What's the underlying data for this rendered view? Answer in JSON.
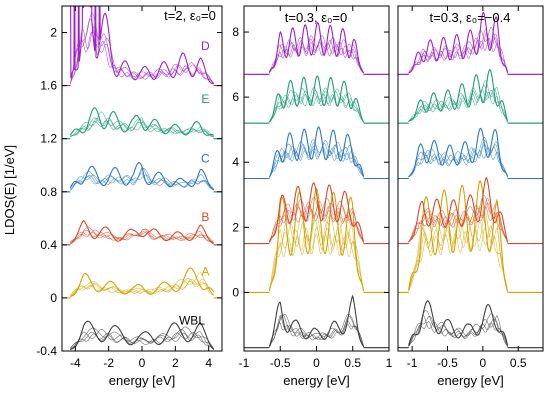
{
  "figure": {
    "ylabel_left": "LDOS(E) [1/eV]",
    "colors": {
      "A": "#d4a400",
      "B": "#d64a2b",
      "C": "#2a7bbf",
      "E": "#1e9e79",
      "D": "#a020c8",
      "WBL": "#404040"
    }
  },
  "chart_data": [
    {
      "type": "line",
      "panel": "left",
      "annotation": "t=2, ε₀=0",
      "xlabel": "energy [eV]",
      "ylabel": "LDOS(E) [1/eV]",
      "xlim": [
        -4.8,
        4.8
      ],
      "ylim": [
        -0.4,
        2.2
      ],
      "xticks": [
        "-4",
        "-2",
        "0",
        "2",
        "4"
      ],
      "yticks": [
        "-0.4",
        "0",
        "0.4",
        "0.8",
        "1.2",
        "1.6",
        "2"
      ],
      "series": [
        {
          "name": "WBL",
          "color": "#404040",
          "offset": -0.4,
          "x": [
            -4.3,
            -3.5,
            -2.5,
            -1.5,
            -0.5,
            0,
            0.5,
            1.5,
            2.5,
            3.5,
            4.3
          ],
          "y": [
            0.02,
            0.14,
            0.16,
            0.12,
            0.1,
            0.09,
            0.1,
            0.12,
            0.16,
            0.14,
            0.02
          ]
        },
        {
          "name": "A",
          "color": "#d4a400",
          "offset": 0.0,
          "x": [
            -4.3,
            -3.5,
            -2.5,
            -1.5,
            -0.5,
            0,
            0.5,
            1.5,
            2.5,
            3.5,
            4.3
          ],
          "y": [
            0.02,
            0.12,
            0.1,
            0.07,
            0.06,
            0.07,
            0.06,
            0.08,
            0.13,
            0.17,
            0.03
          ]
        },
        {
          "name": "B",
          "color": "#d64a2b",
          "offset": 0.4,
          "x": [
            -4.3,
            -3.5,
            -2.5,
            -1.5,
            -0.5,
            0,
            0.5,
            1.5,
            2.5,
            3.5,
            4.3
          ],
          "y": [
            0.02,
            0.12,
            0.1,
            0.06,
            0.08,
            0.14,
            0.08,
            0.07,
            0.06,
            0.1,
            0.02
          ]
        },
        {
          "name": "C",
          "color": "#2a7bbf",
          "offset": 0.8,
          "x": [
            -4.3,
            -3.5,
            -2.5,
            -1.5,
            -0.5,
            0,
            0.5,
            1.5,
            2.5,
            3.5,
            4.3
          ],
          "y": [
            0.02,
            0.15,
            0.1,
            0.12,
            0.1,
            0.18,
            0.1,
            0.09,
            0.06,
            0.12,
            0.03
          ]
        },
        {
          "name": "E",
          "color": "#1e9e79",
          "offset": 1.2,
          "x": [
            -4.3,
            -3.5,
            -2.5,
            -1.5,
            -0.5,
            0,
            0.5,
            1.5,
            2.5,
            3.5,
            4.3
          ],
          "y": [
            0.02,
            0.1,
            0.18,
            0.12,
            0.1,
            0.16,
            0.1,
            0.08,
            0.06,
            0.09,
            0.02
          ]
        },
        {
          "name": "D",
          "color": "#a020c8",
          "offset": 1.6,
          "x": [
            -4.3,
            -3.5,
            -2.5,
            -1.5,
            -0.5,
            0,
            0.5,
            1.5,
            2.5,
            3.5,
            4.3
          ],
          "y": [
            0.02,
            0.5,
            0.45,
            0.14,
            0.1,
            0.09,
            0.1,
            0.12,
            0.16,
            0.14,
            0.02
          ]
        }
      ],
      "annotations": [
        {
          "text": "D",
          "x": 3.8,
          "y": 1.87,
          "color": "#a020c8"
        },
        {
          "text": "E",
          "x": 3.8,
          "y": 1.47,
          "color": "#1e9e79"
        },
        {
          "text": "C",
          "x": 3.8,
          "y": 1.02,
          "color": "#2a7bbf"
        },
        {
          "text": "B",
          "x": 3.8,
          "y": 0.58,
          "color": "#d64a2b"
        },
        {
          "text": "A",
          "x": 3.8,
          "y": 0.17,
          "color": "#d4a400"
        },
        {
          "text": "WBL",
          "x": 3.0,
          "y": -0.2,
          "color": "#000000"
        }
      ]
    },
    {
      "type": "line",
      "panel": "middle",
      "annotation": "t=0.3, ε₀=0",
      "xlabel": "energy [eV]",
      "xlim": [
        -1,
        1
      ],
      "ylim": [
        -1.8,
        8.8
      ],
      "xticks": [
        "-1",
        "-0.5",
        "0",
        "0.5",
        "1"
      ],
      "yticks": [
        "0",
        "2",
        "4",
        "6",
        "8"
      ],
      "series": [
        {
          "name": "WBL",
          "color": "#404040",
          "offset": -1.7,
          "x": [
            -0.65,
            -0.5,
            -0.3,
            0,
            0.3,
            0.5,
            0.65
          ],
          "y": [
            0.05,
            1.1,
            0.6,
            0.4,
            0.6,
            1.1,
            0.05
          ]
        },
        {
          "name": "A",
          "color": "#d4a400",
          "offset": 0.0,
          "x": [
            -0.65,
            -0.5,
            -0.3,
            0,
            0.3,
            0.5,
            0.65
          ],
          "y": [
            0.05,
            2.0,
            2.1,
            2.2,
            2.1,
            2.0,
            0.05
          ]
        },
        {
          "name": "B",
          "color": "#d64a2b",
          "offset": 1.5,
          "x": [
            -0.65,
            -0.5,
            -0.3,
            0,
            0.3,
            0.5,
            0.65
          ],
          "y": [
            0.05,
            1.0,
            1.2,
            1.3,
            1.2,
            1.0,
            0.05
          ]
        },
        {
          "name": "C",
          "color": "#2a7bbf",
          "offset": 3.5,
          "x": [
            -0.65,
            -0.5,
            -0.3,
            0,
            0.3,
            0.5,
            0.65
          ],
          "y": [
            0.05,
            0.9,
            1.0,
            1.1,
            1.0,
            0.9,
            0.05
          ]
        },
        {
          "name": "E",
          "color": "#1e9e79",
          "offset": 5.2,
          "x": [
            -0.65,
            -0.5,
            -0.3,
            0,
            0.3,
            0.5,
            0.65
          ],
          "y": [
            0.05,
            0.8,
            0.95,
            1.0,
            0.95,
            0.8,
            0.05
          ]
        },
        {
          "name": "D",
          "color": "#a020c8",
          "offset": 6.7,
          "x": [
            -0.65,
            -0.5,
            -0.3,
            0,
            0.3,
            0.5,
            0.65
          ],
          "y": [
            0.05,
            0.9,
            1.0,
            1.1,
            1.0,
            0.9,
            0.05
          ]
        }
      ]
    },
    {
      "type": "line",
      "panel": "right",
      "annotation": "t=0.3, ε₀=−0.4",
      "xlabel": "energy [eV]",
      "xlim": [
        -1.2,
        0.85
      ],
      "ylim": [
        -1.8,
        8.8
      ],
      "xticks": [
        "-1",
        "-0.5",
        "0",
        "0.5"
      ],
      "series": [
        {
          "name": "WBL",
          "color": "#404040",
          "offset": -1.7,
          "x": [
            -1.05,
            -0.85,
            -0.5,
            -0.2,
            0.05,
            0.2,
            0.35
          ],
          "y": [
            0.05,
            1.1,
            0.6,
            0.5,
            0.9,
            1.0,
            0.05
          ]
        },
        {
          "name": "A",
          "color": "#d4a400",
          "offset": 0.0,
          "x": [
            -1.05,
            -0.85,
            -0.5,
            -0.2,
            0.05,
            0.2,
            0.35
          ],
          "y": [
            0.05,
            2.0,
            2.2,
            2.3,
            2.4,
            2.0,
            0.05
          ]
        },
        {
          "name": "B",
          "color": "#d64a2b",
          "offset": 1.5,
          "x": [
            -1.05,
            -0.85,
            -0.5,
            -0.2,
            0.05,
            0.2,
            0.35
          ],
          "y": [
            0.05,
            1.0,
            0.9,
            1.0,
            1.4,
            1.1,
            0.05
          ]
        },
        {
          "name": "C",
          "color": "#2a7bbf",
          "offset": 3.5,
          "x": [
            -1.05,
            -0.85,
            -0.5,
            -0.2,
            0.05,
            0.2,
            0.35
          ],
          "y": [
            0.05,
            0.9,
            0.7,
            0.8,
            1.2,
            1.0,
            0.05
          ]
        },
        {
          "name": "E",
          "color": "#1e9e79",
          "offset": 5.2,
          "x": [
            -1.05,
            -0.85,
            -0.5,
            -0.2,
            0.05,
            0.2,
            0.35
          ],
          "y": [
            0.05,
            0.6,
            0.7,
            0.9,
            1.2,
            1.0,
            0.05
          ]
        },
        {
          "name": "D",
          "color": "#a020c8",
          "offset": 6.7,
          "x": [
            -1.05,
            -0.85,
            -0.5,
            -0.2,
            0.05,
            0.2,
            0.35
          ],
          "y": [
            0.05,
            0.7,
            0.8,
            0.9,
            1.4,
            1.2,
            0.05
          ]
        }
      ]
    }
  ]
}
